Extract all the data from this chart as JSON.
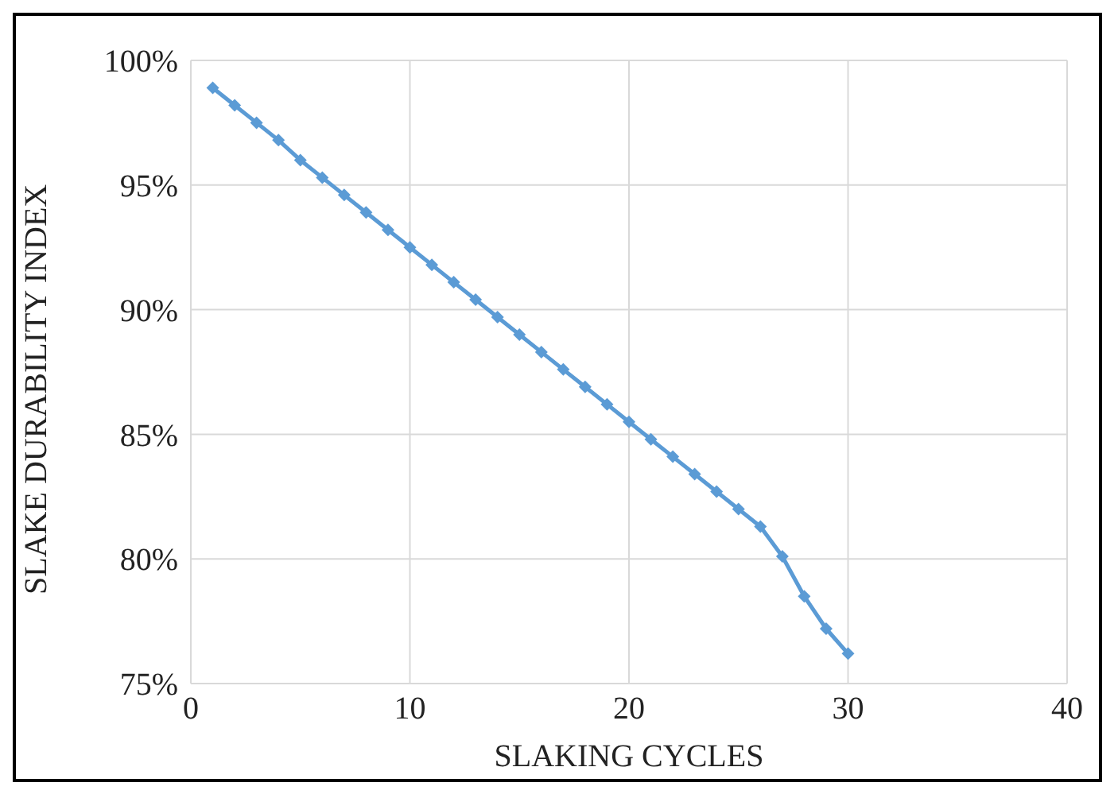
{
  "chart_data": {
    "type": "line",
    "xlabel": "SLAKING CYCLES",
    "ylabel": "SLAKE DURABILITY INDEX",
    "x": [
      1,
      2,
      3,
      4,
      5,
      6,
      7,
      8,
      9,
      10,
      11,
      12,
      13,
      14,
      15,
      16,
      17,
      18,
      19,
      20,
      21,
      22,
      23,
      24,
      25,
      26,
      27,
      28,
      29,
      30
    ],
    "series": [
      {
        "color": "#5b9bd5",
        "values": [
          98.9,
          98.2,
          97.5,
          96.8,
          96.0,
          95.3,
          94.6,
          93.9,
          93.2,
          92.5,
          91.8,
          91.1,
          90.4,
          89.7,
          89.0,
          88.3,
          87.6,
          86.9,
          86.2,
          85.5,
          84.8,
          84.1,
          83.4,
          82.7,
          82.0,
          81.3,
          80.1,
          78.5,
          77.2,
          76.2
        ]
      }
    ],
    "xlim": [
      0,
      40
    ],
    "xticks": [
      0,
      10,
      20,
      30,
      40
    ],
    "ylim": [
      75,
      100
    ],
    "yticks": [
      {
        "value": 75,
        "label": "75%"
      },
      {
        "value": 80,
        "label": "80%"
      },
      {
        "value": 85,
        "label": "85%"
      },
      {
        "value": 90,
        "label": "90%"
      },
      {
        "value": 95,
        "label": "95%"
      },
      {
        "value": 100,
        "label": "100%"
      }
    ],
    "grid": true,
    "marker": "diamond",
    "line_style": "solid"
  }
}
